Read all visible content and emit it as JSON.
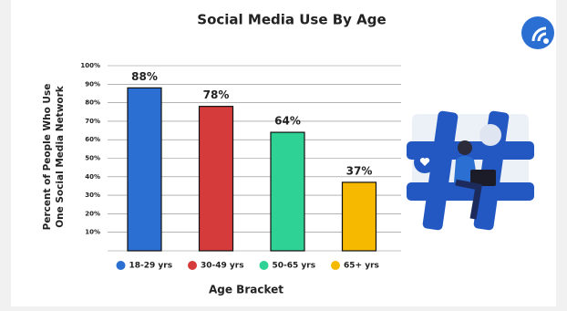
{
  "chart_data": {
    "type": "bar",
    "title": "Social Media Use By Age",
    "x_label": "Age Bracket",
    "y_label": [
      "Percent of People Who Use",
      "One Social Media Network"
    ],
    "categories": [
      "18-29 yrs",
      "30-49 yrs",
      "50-65 yrs",
      "65+ yrs"
    ],
    "values": [
      88,
      78,
      64,
      37
    ],
    "value_labels": [
      "88%",
      "78%",
      "64%",
      "37%"
    ],
    "colors": [
      "#2b6fd3",
      "#d63b3b",
      "#2fd295",
      "#f6b900"
    ],
    "ylim": [
      0,
      100
    ],
    "yticks": [
      {
        "value": 10,
        "label": "10%"
      },
      {
        "value": 20,
        "label": "20%"
      },
      {
        "value": 30,
        "label": "30%"
      },
      {
        "value": 40,
        "label": "40%"
      },
      {
        "value": 50,
        "label": "50%"
      },
      {
        "value": 60,
        "label": "60%"
      },
      {
        "value": 70,
        "label": "70%"
      },
      {
        "value": 80,
        "label": "80%"
      },
      {
        "value": 90,
        "label": "90%"
      },
      {
        "value": 100,
        "label": "100%"
      }
    ],
    "grid": true
  }
}
